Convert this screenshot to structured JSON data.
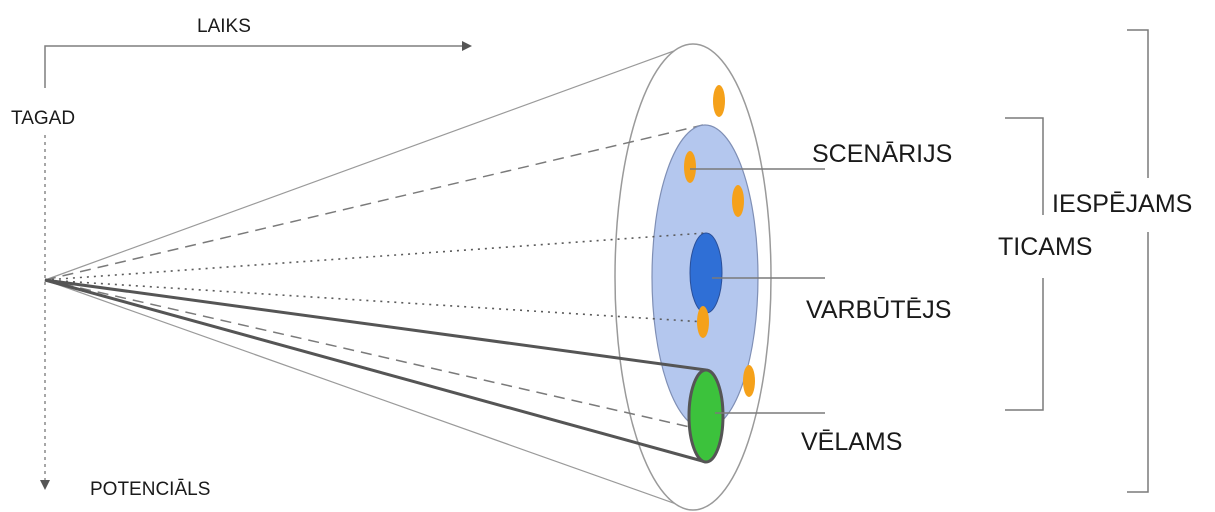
{
  "labels": {
    "time_axis": "LAIKS",
    "now": "TAGAD",
    "potential_axis": "POTENCIĀLS",
    "scenario": "SCENĀRIJS",
    "probable": "VARBŪTĒJS",
    "preferable": "VĒLAMS",
    "plausible": "TICAMS",
    "possible": "IESPĒJAMS"
  },
  "colors": {
    "possible_fill": "#ffffff",
    "plausible_fill": "#b4c7ee",
    "probable_fill": "#2f6fd6",
    "preferable_fill": "#3cc23c",
    "scenario_dots": "#f5a11a",
    "lines": "#7f7f7f"
  }
}
